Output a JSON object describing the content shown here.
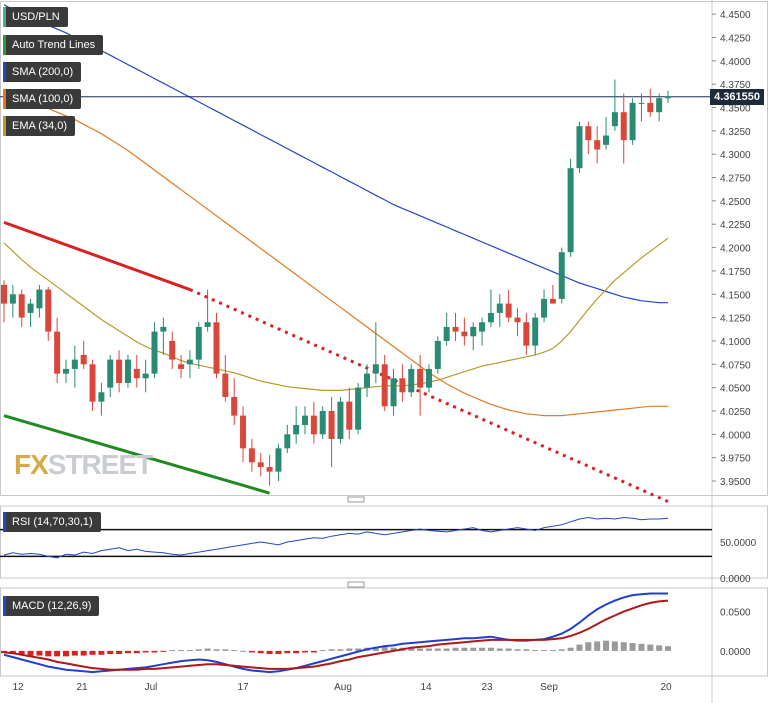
{
  "chart_data": {
    "type": "candlestick",
    "symbol": "USD/PLN",
    "last_price": "4.361550",
    "price_axis": {
      "range": [
        3.935,
        4.463
      ],
      "ticks": [
        "4.4500",
        "4.4250",
        "4.4000",
        "4.3750",
        "4.3500",
        "4.3250",
        "4.3000",
        "4.2750",
        "4.2500",
        "4.2250",
        "4.2000",
        "4.1750",
        "4.1500",
        "4.1250",
        "4.1000",
        "4.0750",
        "4.0500",
        "4.0250",
        "4.0000",
        "3.9750",
        "3.9500"
      ]
    },
    "x_axis": {
      "labels": [
        "12",
        "21",
        "Jul",
        "17",
        "Aug",
        "14",
        "23",
        "Sep",
        "20"
      ]
    },
    "ohlc": [
      [
        4.16,
        4.165,
        4.12,
        4.14
      ],
      [
        4.14,
        4.16,
        4.125,
        4.15
      ],
      [
        4.15,
        4.155,
        4.115,
        4.125
      ],
      [
        4.13,
        4.145,
        4.115,
        4.14
      ],
      [
        4.135,
        4.16,
        4.125,
        4.155
      ],
      [
        4.155,
        4.158,
        4.1,
        4.11
      ],
      [
        4.11,
        4.125,
        4.055,
        4.065
      ],
      [
        4.065,
        4.08,
        4.055,
        4.07
      ],
      [
        4.07,
        4.095,
        4.05,
        4.08
      ],
      [
        4.085,
        4.1,
        4.07,
        4.075
      ],
      [
        4.075,
        4.08,
        4.025,
        4.035
      ],
      [
        4.035,
        4.055,
        4.02,
        4.045
      ],
      [
        4.05,
        4.085,
        4.04,
        4.08
      ],
      [
        4.08,
        4.09,
        4.045,
        4.055
      ],
      [
        4.055,
        4.085,
        4.05,
        4.08
      ],
      [
        4.07,
        4.085,
        4.05,
        4.06
      ],
      [
        4.06,
        4.08,
        4.045,
        4.065
      ],
      [
        4.065,
        4.12,
        4.06,
        4.11
      ],
      [
        4.11,
        4.125,
        4.085,
        4.115
      ],
      [
        4.1,
        4.11,
        4.07,
        4.08
      ],
      [
        4.075,
        4.085,
        4.06,
        4.07
      ],
      [
        4.075,
        4.09,
        4.06,
        4.08
      ],
      [
        4.08,
        4.12,
        4.07,
        4.115
      ],
      [
        4.115,
        4.155,
        4.11,
        4.12
      ],
      [
        4.12,
        4.13,
        4.06,
        4.065
      ],
      [
        4.065,
        4.085,
        4.035,
        4.04
      ],
      [
        4.04,
        4.06,
        4.01,
        4.02
      ],
      [
        4.02,
        4.03,
        3.97,
        3.985
      ],
      [
        3.985,
        3.995,
        3.96,
        3.97
      ],
      [
        3.97,
        3.98,
        3.955,
        3.965
      ],
      [
        3.965,
        3.978,
        3.945,
        3.96
      ],
      [
        3.96,
        3.99,
        3.95,
        3.985
      ],
      [
        3.985,
        4.01,
        3.98,
        4.0
      ],
      [
        4.0,
        4.03,
        3.99,
        4.01
      ],
      [
        4.01,
        4.03,
        4.0,
        4.02
      ],
      [
        4.02,
        4.035,
        3.99,
        4.0
      ],
      [
        4.0,
        4.03,
        3.995,
        4.025
      ],
      [
        4.025,
        4.04,
        3.965,
        3.995
      ],
      [
        3.995,
        4.04,
        3.99,
        4.035
      ],
      [
        4.035,
        4.05,
        3.995,
        4.005
      ],
      [
        4.005,
        4.055,
        4.0,
        4.05
      ],
      [
        4.05,
        4.075,
        4.04,
        4.065
      ],
      [
        4.065,
        4.12,
        4.055,
        4.075
      ],
      [
        4.075,
        4.085,
        4.025,
        4.03
      ],
      [
        4.03,
        4.07,
        4.02,
        4.06
      ],
      [
        4.06,
        4.075,
        4.035,
        4.045
      ],
      [
        4.045,
        4.075,
        4.04,
        4.07
      ],
      [
        4.07,
        4.085,
        4.02,
        4.05
      ],
      [
        4.05,
        4.075,
        4.045,
        4.07
      ],
      [
        4.07,
        4.105,
        4.065,
        4.1
      ],
      [
        4.1,
        4.13,
        4.095,
        4.115
      ],
      [
        4.115,
        4.13,
        4.1,
        4.11
      ],
      [
        4.11,
        4.125,
        4.095,
        4.105
      ],
      [
        4.105,
        4.12,
        4.09,
        4.115
      ],
      [
        4.11,
        4.125,
        4.095,
        4.12
      ],
      [
        4.12,
        4.155,
        4.115,
        4.13
      ],
      [
        4.13,
        4.15,
        4.115,
        4.14
      ],
      [
        4.14,
        4.155,
        4.12,
        4.125
      ],
      [
        4.125,
        4.135,
        4.105,
        4.12
      ],
      [
        4.12,
        4.13,
        4.085,
        4.095
      ],
      [
        4.095,
        4.13,
        4.085,
        4.125
      ],
      [
        4.125,
        4.155,
        4.12,
        4.145
      ],
      [
        4.145,
        4.16,
        4.14,
        4.14
      ],
      [
        4.145,
        4.2,
        4.14,
        4.195
      ],
      [
        4.195,
        4.295,
        4.19,
        4.285
      ],
      [
        4.285,
        4.335,
        4.28,
        4.33
      ],
      [
        4.33,
        4.335,
        4.3,
        4.315
      ],
      [
        4.315,
        4.33,
        4.29,
        4.305
      ],
      [
        4.31,
        4.34,
        4.305,
        4.32
      ],
      [
        4.33,
        4.38,
        4.325,
        4.345
      ],
      [
        4.345,
        4.365,
        4.29,
        4.315
      ],
      [
        4.315,
        4.36,
        4.31,
        4.355
      ],
      [
        4.355,
        4.365,
        4.335,
        4.355
      ],
      [
        4.355,
        4.37,
        4.34,
        4.345
      ],
      [
        4.345,
        4.365,
        4.335,
        4.36
      ],
      [
        4.36,
        4.368,
        4.355,
        4.362
      ]
    ],
    "sma_200": {
      "label": "SMA (200,0)",
      "color": "#2545c2",
      "values": [
        4.46,
        4.455,
        4.451,
        4.447,
        4.443,
        4.438,
        4.434,
        4.43,
        4.425,
        4.42,
        4.416,
        4.411,
        4.406,
        4.401,
        4.396,
        4.391,
        4.386,
        4.381,
        4.376,
        4.371,
        4.366,
        4.361,
        4.356,
        4.351,
        4.346,
        4.341,
        4.336,
        4.331,
        4.326,
        4.321,
        4.316,
        4.311,
        4.306,
        4.301,
        4.296,
        4.291,
        4.286,
        4.281,
        4.276,
        4.271,
        4.266,
        4.261,
        4.256,
        4.251,
        4.246,
        4.242,
        4.238,
        4.234,
        4.23,
        4.226,
        4.222,
        4.218,
        4.214,
        4.21,
        4.206,
        4.202,
        4.198,
        4.194,
        4.19,
        4.186,
        4.182,
        4.178,
        4.174,
        4.17,
        4.166,
        4.162,
        4.159,
        4.156,
        4.153,
        4.15,
        4.147,
        4.145,
        4.143,
        4.142,
        4.141,
        4.141
      ]
    },
    "sma_100": {
      "label": "SMA (100,0)",
      "color": "#e07a24",
      "values": [
        4.36,
        4.359,
        4.357,
        4.355,
        4.352,
        4.349,
        4.345,
        4.341,
        4.337,
        4.332,
        4.327,
        4.322,
        4.316,
        4.31,
        4.304,
        4.297,
        4.29,
        4.283,
        4.276,
        4.269,
        4.262,
        4.255,
        4.248,
        4.241,
        4.234,
        4.227,
        4.22,
        4.213,
        4.206,
        4.199,
        4.192,
        4.185,
        4.178,
        4.171,
        4.164,
        4.157,
        4.15,
        4.143,
        4.136,
        4.129,
        4.122,
        4.115,
        4.108,
        4.101,
        4.094,
        4.087,
        4.08,
        4.073,
        4.066,
        4.06,
        4.054,
        4.049,
        4.044,
        4.04,
        4.036,
        4.032,
        4.029,
        4.026,
        4.024,
        4.022,
        4.021,
        4.02,
        4.02,
        4.02,
        4.021,
        4.022,
        4.023,
        4.024,
        4.025,
        4.026,
        4.027,
        4.028,
        4.029,
        4.03,
        4.03,
        4.03
      ]
    },
    "ema_34": {
      "label": "EMA (34,0)",
      "color": "#b59b2a",
      "values": [
        4.205,
        4.196,
        4.187,
        4.179,
        4.172,
        4.165,
        4.158,
        4.151,
        4.144,
        4.137,
        4.13,
        4.123,
        4.117,
        4.111,
        4.105,
        4.099,
        4.094,
        4.09,
        4.087,
        4.083,
        4.079,
        4.076,
        4.074,
        4.072,
        4.07,
        4.068,
        4.066,
        4.063,
        4.06,
        4.057,
        4.055,
        4.053,
        4.051,
        4.05,
        4.049,
        4.048,
        4.047,
        4.047,
        4.047,
        4.048,
        4.049,
        4.05,
        4.051,
        4.052,
        4.052,
        4.052,
        4.053,
        4.054,
        4.056,
        4.058,
        4.061,
        4.064,
        4.067,
        4.07,
        4.073,
        4.075,
        4.077,
        4.079,
        4.081,
        4.083,
        4.085,
        4.088,
        4.092,
        4.1,
        4.11,
        4.122,
        4.134,
        4.145,
        4.155,
        4.165,
        4.173,
        4.181,
        4.189,
        4.196,
        4.203,
        4.21
      ]
    },
    "trend_red": [
      [
        0,
        4.227
      ],
      [
        21,
        4.155
      ]
    ],
    "trend_red_dotted": [
      [
        21,
        4.155
      ],
      [
        75,
        3.928
      ]
    ],
    "trend_green": [
      [
        0,
        4.02
      ],
      [
        30,
        3.937
      ]
    ],
    "rsi": {
      "label": "RSI (14,70,30,1)",
      "levels": [
        70,
        30
      ],
      "tick": "50.0000",
      "tick_zero": "0.0000",
      "values": [
        32,
        35,
        33,
        34,
        33,
        30,
        28,
        33,
        32,
        36,
        34,
        38,
        40,
        42,
        38,
        40,
        37,
        36,
        35,
        33,
        32,
        34,
        36,
        38,
        40,
        42,
        44,
        46,
        48,
        50,
        48,
        46,
        50,
        52,
        54,
        56,
        55,
        58,
        60,
        62,
        61,
        64,
        62,
        60,
        62,
        64,
        66,
        68,
        66,
        65,
        64,
        66,
        68,
        70,
        66,
        64,
        66,
        68,
        70,
        68,
        66,
        70,
        72,
        74,
        78,
        82,
        84,
        82,
        83,
        82,
        84,
        83,
        81,
        82,
        82,
        83
      ]
    },
    "macd": {
      "label": "MACD (12,26,9)",
      "tick_top": "0.0500",
      "tick_zero": "0.0000",
      "histogram": [
        -0.003,
        -0.004,
        -0.005,
        -0.006,
        -0.006,
        -0.007,
        -0.007,
        -0.007,
        -0.006,
        -0.006,
        -0.005,
        -0.005,
        -0.004,
        -0.004,
        -0.003,
        -0.003,
        -0.002,
        -0.002,
        -0.001,
        0.001,
        0.001,
        0.001,
        0.002,
        0.003,
        0.002,
        0.002,
        0.001,
        0.0,
        -0.002,
        -0.003,
        -0.004,
        -0.004,
        -0.003,
        -0.003,
        -0.002,
        -0.002,
        0.001,
        0.002,
        0.002,
        0.003,
        0.003,
        0.004,
        0.005,
        0.005,
        0.004,
        0.004,
        0.004,
        0.003,
        0.003,
        0.003,
        0.003,
        0.004,
        0.004,
        0.004,
        0.004,
        0.004,
        0.003,
        0.003,
        0.002,
        0.002,
        0.001,
        0.001,
        0.001,
        0.002,
        0.004,
        0.008,
        0.011,
        0.012,
        0.013,
        0.012,
        0.011,
        0.01,
        0.009,
        0.008,
        0.007,
        0.006
      ],
      "macd": [
        -0.005,
        -0.008,
        -0.011,
        -0.014,
        -0.017,
        -0.02,
        -0.022,
        -0.024,
        -0.025,
        -0.026,
        -0.027,
        -0.026,
        -0.025,
        -0.024,
        -0.023,
        -0.022,
        -0.021,
        -0.019,
        -0.017,
        -0.015,
        -0.013,
        -0.012,
        -0.011,
        -0.012,
        -0.014,
        -0.017,
        -0.02,
        -0.023,
        -0.025,
        -0.026,
        -0.027,
        -0.026,
        -0.024,
        -0.022,
        -0.019,
        -0.016,
        -0.013,
        -0.01,
        -0.007,
        -0.004,
        -0.001,
        0.002,
        0.004,
        0.006,
        0.007,
        0.009,
        0.01,
        0.011,
        0.012,
        0.013,
        0.014,
        0.015,
        0.016,
        0.016,
        0.017,
        0.018,
        0.016,
        0.014,
        0.013,
        0.013,
        0.014,
        0.015,
        0.018,
        0.022,
        0.028,
        0.036,
        0.045,
        0.053,
        0.059,
        0.064,
        0.068,
        0.071,
        0.072,
        0.073,
        0.073,
        0.073
      ],
      "signal": [
        -0.002,
        -0.003,
        -0.005,
        -0.007,
        -0.009,
        -0.011,
        -0.014,
        -0.016,
        -0.018,
        -0.02,
        -0.022,
        -0.023,
        -0.024,
        -0.024,
        -0.024,
        -0.024,
        -0.023,
        -0.023,
        -0.022,
        -0.021,
        -0.02,
        -0.019,
        -0.018,
        -0.017,
        -0.017,
        -0.018,
        -0.019,
        -0.02,
        -0.021,
        -0.022,
        -0.023,
        -0.023,
        -0.023,
        -0.022,
        -0.021,
        -0.02,
        -0.018,
        -0.016,
        -0.013,
        -0.011,
        -0.008,
        -0.006,
        -0.004,
        -0.002,
        0.0,
        0.002,
        0.004,
        0.005,
        0.006,
        0.008,
        0.009,
        0.01,
        0.011,
        0.012,
        0.013,
        0.014,
        0.014,
        0.014,
        0.014,
        0.014,
        0.014,
        0.014,
        0.015,
        0.016,
        0.019,
        0.023,
        0.028,
        0.034,
        0.04,
        0.045,
        0.05,
        0.054,
        0.058,
        0.061,
        0.063,
        0.064
      ]
    }
  },
  "watermark": {
    "fx": "FX",
    "street": "STREET"
  },
  "colors": {
    "up": "#2a8a73",
    "down": "#d9473b",
    "price_line": "#1c2a5a"
  }
}
